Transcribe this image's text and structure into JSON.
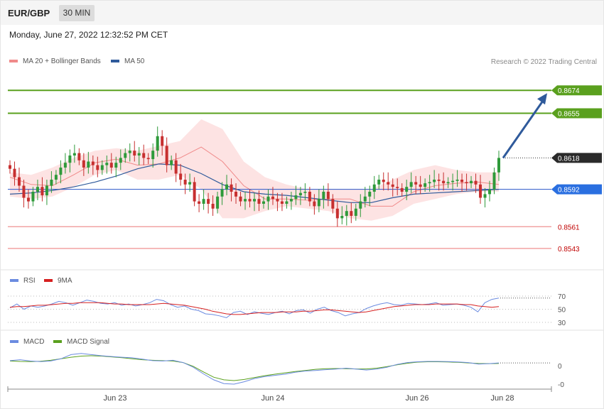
{
  "header": {
    "pair": "EUR/GBP",
    "timeframe": "30 MIN"
  },
  "date_line": "Monday, June 27, 2022 12:32:52 PM CET",
  "credit": "Research © 2022 Trading Central",
  "colors": {
    "bollinger": "#f08a8a",
    "ma50": "#2f5a9b",
    "bull": "#2e9a3a",
    "bear": "#c72f2f",
    "target": "#5aa01e",
    "rsi": "#6b8be0",
    "rsi_ma": "#d62020",
    "macd": "#6b8be0",
    "macd_signal": "#5aa01e"
  },
  "chart_data": [
    {
      "type": "candlestick",
      "panel": "price",
      "legend": [
        {
          "name": "MA 20 + Bollinger Bands"
        },
        {
          "name": "MA 50"
        }
      ],
      "ylim": [
        0.853,
        0.869
      ],
      "x_ticks": [
        "Jun 23",
        "Jun 24",
        "Jun 26",
        "Jun 28"
      ],
      "levels": [
        {
          "value": 0.8674,
          "label": "0.8674",
          "kind": "target"
        },
        {
          "value": 0.8655,
          "label": "0.8655",
          "kind": "target"
        },
        {
          "value": 0.8618,
          "label": "0.8618",
          "kind": "current"
        },
        {
          "value": 0.8592,
          "label": "0.8592",
          "kind": "pivot"
        },
        {
          "value": 0.8561,
          "label": "0.8561",
          "kind": "support"
        },
        {
          "value": 0.8543,
          "label": "0.8543",
          "kind": "support"
        }
      ],
      "forecast_arrow": {
        "from": 0.8618,
        "to": 0.8674
      },
      "close": [
        0.8609,
        0.8602,
        0.8595,
        0.8585,
        0.8582,
        0.859,
        0.8594,
        0.8587,
        0.8595,
        0.86,
        0.8604,
        0.861,
        0.8614,
        0.862,
        0.8622,
        0.8616,
        0.861,
        0.8615,
        0.8612,
        0.8608,
        0.8612,
        0.8614,
        0.861,
        0.8614,
        0.8618,
        0.8622,
        0.8624,
        0.862,
        0.8622,
        0.8618,
        0.8617,
        0.8624,
        0.8636,
        0.8628,
        0.8612,
        0.8616,
        0.8605,
        0.86,
        0.8596,
        0.8598,
        0.8582,
        0.858,
        0.8584,
        0.858,
        0.8576,
        0.8586,
        0.8592,
        0.8596,
        0.859,
        0.8586,
        0.8582,
        0.8584,
        0.8582,
        0.8584,
        0.858,
        0.8582,
        0.8586,
        0.8584,
        0.8582,
        0.858,
        0.8582,
        0.8584,
        0.8587,
        0.8589,
        0.859,
        0.8582,
        0.8578,
        0.8584,
        0.859,
        0.8584,
        0.8576,
        0.8568,
        0.857,
        0.8574,
        0.857,
        0.8576,
        0.8582,
        0.8586,
        0.859,
        0.8596,
        0.86,
        0.8598,
        0.8596,
        0.8594,
        0.8593,
        0.859,
        0.8594,
        0.8598,
        0.8596,
        0.8594,
        0.8597,
        0.8598,
        0.86,
        0.8599,
        0.8597,
        0.8598,
        0.8599,
        0.86,
        0.8598,
        0.8597,
        0.8599,
        0.8596,
        0.8585,
        0.8588,
        0.8592,
        0.8606,
        0.8618
      ],
      "ma50": [
        0.8588,
        0.8589,
        0.8591,
        0.8594,
        0.8598,
        0.8603,
        0.8609,
        0.8613,
        0.8612,
        0.8605,
        0.8596,
        0.859,
        0.8588,
        0.8587,
        0.8585,
        0.8583,
        0.8581,
        0.8581,
        0.8585,
        0.8588,
        0.8589,
        0.859,
        0.8591,
        0.8592
      ],
      "bb_mid": [
        0.8602,
        0.8596,
        0.8595,
        0.8604,
        0.8614,
        0.8617,
        0.8612,
        0.8613,
        0.8618,
        0.8627,
        0.8615,
        0.8595,
        0.8584,
        0.8584,
        0.8583,
        0.8584,
        0.8584,
        0.8578,
        0.8578,
        0.859,
        0.8595,
        0.8597,
        0.8598,
        0.8596
      ],
      "bb_upper": [
        0.8606,
        0.8604,
        0.861,
        0.8618,
        0.8624,
        0.8626,
        0.8624,
        0.8628,
        0.8632,
        0.865,
        0.8642,
        0.8615,
        0.8602,
        0.8596,
        0.8592,
        0.8592,
        0.8592,
        0.8592,
        0.86,
        0.8608,
        0.8612,
        0.8608,
        0.8606,
        0.8606
      ],
      "bb_lower": [
        0.8586,
        0.8584,
        0.8586,
        0.8594,
        0.8604,
        0.8608,
        0.86,
        0.86,
        0.8604,
        0.8592,
        0.8568,
        0.8568,
        0.8574,
        0.8578,
        0.8576,
        0.8574,
        0.8568,
        0.8566,
        0.857,
        0.858,
        0.8584,
        0.8588,
        0.859,
        0.859
      ]
    },
    {
      "type": "line",
      "panel": "rsi",
      "legend": [
        {
          "name": "RSI"
        },
        {
          "name": "9MA"
        }
      ],
      "y_ticks": [
        "70",
        "50",
        "30"
      ],
      "ylim": [
        30,
        70
      ],
      "series": [
        {
          "name": "RSI",
          "values": [
            52,
            58,
            50,
            55,
            53,
            55,
            58,
            62,
            60,
            56,
            60,
            64,
            62,
            59,
            58,
            60,
            56,
            58,
            55,
            57,
            60,
            65,
            63,
            57,
            53,
            55,
            50,
            48,
            43,
            42,
            40,
            37,
            45,
            47,
            42,
            46,
            44,
            42,
            45,
            47,
            43,
            48,
            49,
            44,
            50,
            53,
            48,
            45,
            40,
            43,
            45,
            51,
            55,
            58,
            60,
            57,
            56,
            59,
            58,
            57,
            58,
            60,
            56,
            57,
            58,
            56,
            53,
            46,
            60,
            65,
            67
          ]
        },
        {
          "name": "9MA",
          "values": [
            53,
            54,
            54,
            55,
            56,
            56,
            57,
            58,
            59,
            59,
            60,
            60,
            60,
            60,
            59,
            58,
            58,
            57,
            57,
            57,
            57,
            58,
            59,
            58,
            57,
            56,
            54,
            52,
            50,
            47,
            45,
            43,
            42,
            42,
            43,
            44,
            45,
            45,
            45,
            46,
            46,
            46,
            47,
            47,
            48,
            49,
            49,
            48,
            47,
            46,
            45,
            46,
            48,
            50,
            52,
            54,
            55,
            56,
            57,
            57,
            57,
            58,
            58,
            58,
            58,
            57,
            57,
            55,
            54,
            53,
            54
          ]
        }
      ]
    },
    {
      "type": "line",
      "panel": "macd",
      "legend": [
        {
          "name": "MACD"
        },
        {
          "name": "MACD Signal"
        }
      ],
      "y_ticks": [
        "0",
        "-0"
      ],
      "ylim": [
        -1.0,
        1.0
      ],
      "series": [
        {
          "name": "MACD",
          "values": [
            0.4,
            0.45,
            0.38,
            0.35,
            0.38,
            0.5,
            0.72,
            0.78,
            0.72,
            0.66,
            0.62,
            0.58,
            0.55,
            0.48,
            0.4,
            0.38,
            0.42,
            0.3,
            0.05,
            -0.3,
            -0.62,
            -0.82,
            -0.85,
            -0.72,
            -0.55,
            -0.45,
            -0.38,
            -0.32,
            -0.22,
            -0.15,
            -0.12,
            -0.08,
            -0.05,
            0.0,
            -0.05,
            -0.1,
            -0.05,
            0.05,
            0.2,
            0.3,
            0.34,
            0.36,
            0.36,
            0.35,
            0.33,
            0.3,
            0.22,
            0.24,
            0.28
          ]
        },
        {
          "name": "MACD Signal",
          "values": [
            0.38,
            0.36,
            0.35,
            0.37,
            0.42,
            0.5,
            0.58,
            0.64,
            0.66,
            0.64,
            0.6,
            0.56,
            0.5,
            0.45,
            0.42,
            0.4,
            0.38,
            0.3,
            0.1,
            -0.2,
            -0.48,
            -0.62,
            -0.66,
            -0.6,
            -0.5,
            -0.4,
            -0.32,
            -0.25,
            -0.18,
            -0.12,
            -0.06,
            -0.03,
            -0.02,
            -0.03,
            -0.04,
            -0.04,
            0.0,
            0.08,
            0.18,
            0.26,
            0.32,
            0.34,
            0.34,
            0.33,
            0.31,
            0.28,
            0.25,
            0.24,
            0.25
          ]
        }
      ]
    }
  ]
}
